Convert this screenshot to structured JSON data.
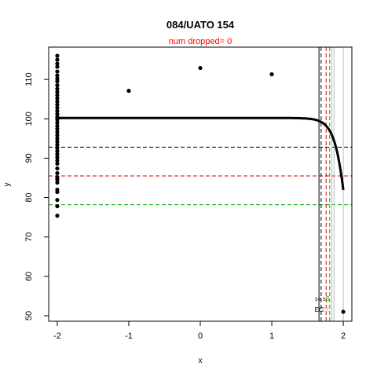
{
  "chart_data": {
    "type": "scatter",
    "title": "084/UATO 154",
    "subtitle": "num dropped= 0",
    "xlabel": "x",
    "ylabel": "y",
    "xlim": [
      -2.12,
      2.12
    ],
    "ylim": [
      48.6,
      118.2
    ],
    "x_ticks": [
      -2,
      -1,
      0,
      1,
      2
    ],
    "y_ticks": [
      50,
      60,
      70,
      80,
      90,
      100,
      110
    ],
    "grid": false,
    "series": [
      {
        "kind": "points",
        "color": "#000000",
        "points": [
          {
            "x": -2,
            "y": 116.0
          },
          {
            "x": -2,
            "y": 115.0
          },
          {
            "x": -2,
            "y": 114.0
          },
          {
            "x": -2,
            "y": 113.2
          },
          {
            "x": -2,
            "y": 112.0
          },
          {
            "x": -2,
            "y": 111.0
          },
          {
            "x": -2,
            "y": 110.2
          },
          {
            "x": -2,
            "y": 109.5
          },
          {
            "x": -2,
            "y": 108.5
          },
          {
            "x": -2,
            "y": 107.6
          },
          {
            "x": -2,
            "y": 106.8
          },
          {
            "x": -2,
            "y": 106.0
          },
          {
            "x": -2,
            "y": 105.2
          },
          {
            "x": -2,
            "y": 104.4
          },
          {
            "x": -2,
            "y": 103.6
          },
          {
            "x": -2,
            "y": 102.8
          },
          {
            "x": -2,
            "y": 102.0
          },
          {
            "x": -2,
            "y": 101.2
          },
          {
            "x": -2,
            "y": 100.4
          },
          {
            "x": -2,
            "y": 99.8
          },
          {
            "x": -2,
            "y": 99.0
          },
          {
            "x": -2,
            "y": 98.2
          },
          {
            "x": -2,
            "y": 97.4
          },
          {
            "x": -2,
            "y": 96.6
          },
          {
            "x": -2,
            "y": 95.8
          },
          {
            "x": -2,
            "y": 95.0
          },
          {
            "x": -2,
            "y": 94.2
          },
          {
            "x": -2,
            "y": 93.4
          },
          {
            "x": -2,
            "y": 92.6
          },
          {
            "x": -2,
            "y": 91.8
          },
          {
            "x": -2,
            "y": 91.0
          },
          {
            "x": -2,
            "y": 90.2
          },
          {
            "x": -2,
            "y": 89.4
          },
          {
            "x": -2,
            "y": 88.6
          },
          {
            "x": -2,
            "y": 87.4
          },
          {
            "x": -2,
            "y": 86.2
          },
          {
            "x": -2,
            "y": 85.2
          },
          {
            "x": -2,
            "y": 84.6
          },
          {
            "x": -2,
            "y": 83.8
          },
          {
            "x": -2,
            "y": 82.0
          },
          {
            "x": -2,
            "y": 81.4
          },
          {
            "x": -2,
            "y": 79.4
          },
          {
            "x": -2,
            "y": 77.8
          },
          {
            "x": -2,
            "y": 75.4
          },
          {
            "x": -1,
            "y": 107.1
          },
          {
            "x": 0,
            "y": 112.9
          },
          {
            "x": 1,
            "y": 111.3
          },
          {
            "x": 2.0,
            "y": 51.0
          }
        ]
      },
      {
        "kind": "fitted-curve",
        "color": "#000000",
        "top": 100.2,
        "bottom": 0,
        "ec50_x": 2.15,
        "slope": 10
      }
    ],
    "reference_lines": [
      {
        "orientation": "horizontal",
        "y": 92.8,
        "color": "#000000",
        "style": "dashed"
      },
      {
        "orientation": "horizontal",
        "y": 85.5,
        "color": "#cc0000",
        "style": "dashed"
      },
      {
        "orientation": "horizontal",
        "y": 78.2,
        "color": "#00aa00",
        "style": "dashed"
      },
      {
        "orientation": "vertical",
        "x": 1.66,
        "color": "#000000",
        "style": "solid"
      },
      {
        "orientation": "vertical",
        "x": 1.69,
        "color": "#000000",
        "style": "dashed"
      },
      {
        "orientation": "vertical",
        "x": 1.76,
        "color": "#cc0000",
        "style": "dashed"
      },
      {
        "orientation": "vertical",
        "x": 1.81,
        "color": "#00aa00",
        "style": "dashed"
      },
      {
        "orientation": "vertical",
        "x": 1.84,
        "color": "#bbbbbb",
        "style": "solid"
      },
      {
        "orientation": "vertical",
        "x": 1.87,
        "color": "#bbbbbb",
        "style": "solid"
      },
      {
        "orientation": "vertical",
        "x": 2.0,
        "color": "#bbbbbb",
        "style": "solid"
      }
    ],
    "annotations": [
      {
        "text": "sa",
        "x": 1.6,
        "y": 53.8,
        "color": "#333333"
      },
      {
        "text": "s",
        "x": 1.71,
        "y": 53.8,
        "color": "#cc0000"
      },
      {
        "text": "S",
        "x": 1.75,
        "y": 53.8,
        "color": "#00aa00"
      },
      {
        "text": "EC",
        "x": 1.6,
        "y": 51.0,
        "color": "#000000"
      },
      {
        "text": "EC",
        "x": 1.71,
        "y": 51.0,
        "color": "#bbbbbb"
      }
    ]
  }
}
